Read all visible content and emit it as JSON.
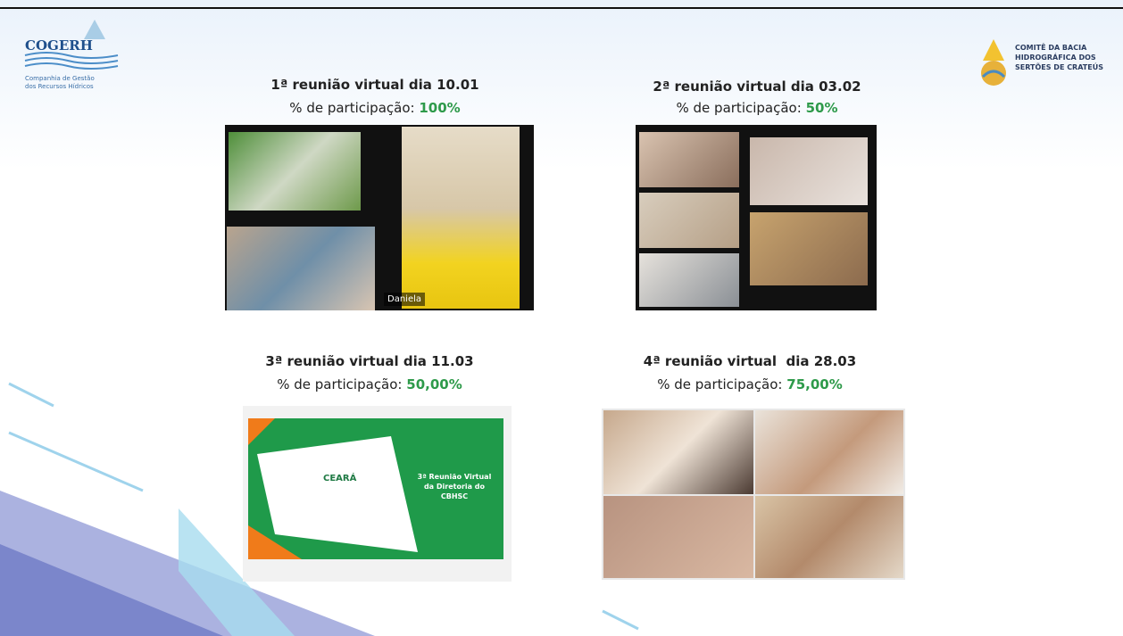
{
  "logos": {
    "left": {
      "name": "COGERH",
      "subtitle": [
        "Companhia de Gestão",
        "dos Recursos Hídricos"
      ]
    },
    "right": {
      "lines": [
        "COMITÊ DA BACIA",
        "HIDROGRÁFICA DOS",
        "SERTÕES DE CRATEÚS"
      ]
    }
  },
  "meetings": [
    {
      "title": "1ª reunião virtual dia 10.01",
      "participation_label": "% de participação:",
      "participation": "100%"
    },
    {
      "title": "2ª reunião virtual dia 03.02",
      "participation_label": "% de participação:",
      "participation": "50%"
    },
    {
      "title": "3ª reunião virtual dia 11.03",
      "participation_label": "% de participação:",
      "participation": "50,00%"
    },
    {
      "title": "4ª reunião virtual  dia 28.03",
      "participation_label": "% de participação:",
      "participation": "75,00%"
    }
  ],
  "participant_name": "Daniela",
  "slide_preview": {
    "brand": "CEARÁ",
    "title": [
      "3ª Reunião Virtual",
      "da Diretoria do",
      "CBHSC"
    ]
  }
}
